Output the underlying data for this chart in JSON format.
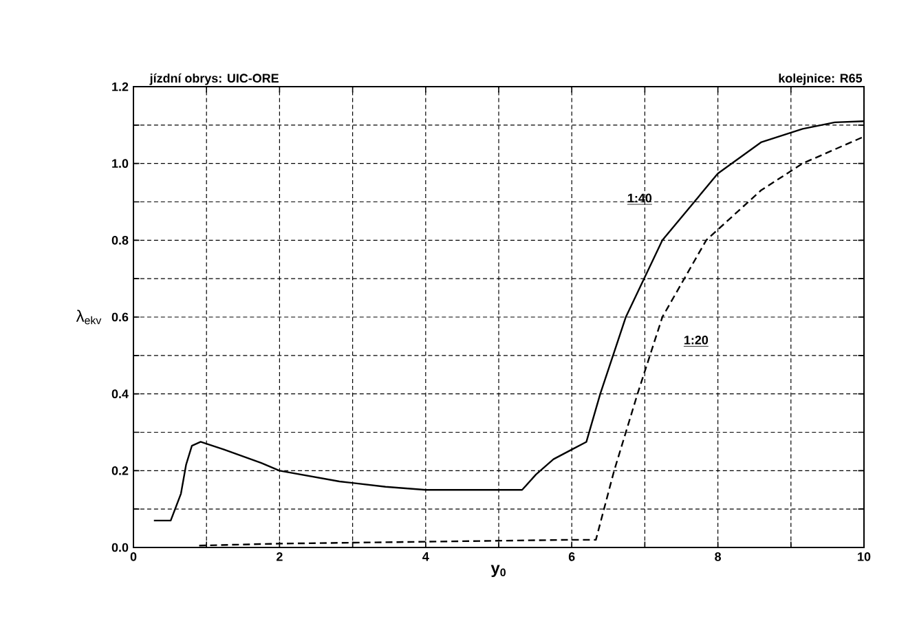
{
  "chart_data": {
    "type": "line",
    "title": "jízdní obrys: UIC-ORE",
    "subtitle": "kolejnice: R65",
    "xlabel": "y$_{0}$",
    "ylabel": "λ$_{ekv}$",
    "xlim": [
      0,
      10
    ],
    "ylim": [
      0,
      1.2
    ],
    "xticks": [
      0,
      {
        "value": 1,
        "label": null
      },
      2,
      {
        "value": 3,
        "label": null
      },
      4,
      {
        "value": 5,
        "label": null
      },
      6,
      {
        "value": 7,
        "label": null
      },
      8,
      {
        "value": 9,
        "label": null
      },
      10
    ],
    "yticks": [
      {
        "value": 0,
        "label": "0.0"
      },
      {
        "value": 0.1,
        "label": null
      },
      0.2,
      {
        "value": 0.3,
        "label": null
      },
      0.4,
      {
        "value": 0.5,
        "label": null
      },
      0.6,
      {
        "value": 0.7,
        "label": null
      },
      0.8,
      {
        "value": 0.9,
        "label": null
      },
      {
        "value": 1.0,
        "label": "1.0"
      },
      {
        "value": 1.1,
        "label": null
      },
      1.2
    ],
    "grid": true,
    "series": [
      {
        "name": "1:40",
        "color": "#000000",
        "line_style": "solid",
        "x": [
          0.28,
          0.51,
          0.65,
          0.72,
          0.8,
          0.92,
          1.24,
          1.75,
          2.0,
          2.82,
          3.45,
          4.0,
          5.32,
          5.51,
          5.75,
          6.0,
          6.2,
          6.39,
          6.74,
          7.24,
          8.0,
          8.59,
          9.16,
          9.6,
          10.0
        ],
        "values": [
          0.07,
          0.07,
          0.14,
          0.215,
          0.265,
          0.275,
          0.255,
          0.22,
          0.2,
          0.172,
          0.158,
          0.15,
          0.15,
          0.19,
          0.23,
          0.255,
          0.275,
          0.4,
          0.6,
          0.8,
          0.974,
          1.055,
          1.09,
          1.107,
          1.11
        ]
      },
      {
        "name": "1:20",
        "color": "#000000",
        "line_style": "dashed",
        "x": [
          0.9,
          2.0,
          4.0,
          6.0,
          6.33,
          6.58,
          6.9,
          7.24,
          7.84,
          8.59,
          9.16,
          10.0
        ],
        "values": [
          0.005,
          0.01,
          0.015,
          0.02,
          0.02,
          0.2,
          0.4,
          0.6,
          0.8,
          0.93,
          1.0,
          1.07
        ]
      }
    ]
  }
}
